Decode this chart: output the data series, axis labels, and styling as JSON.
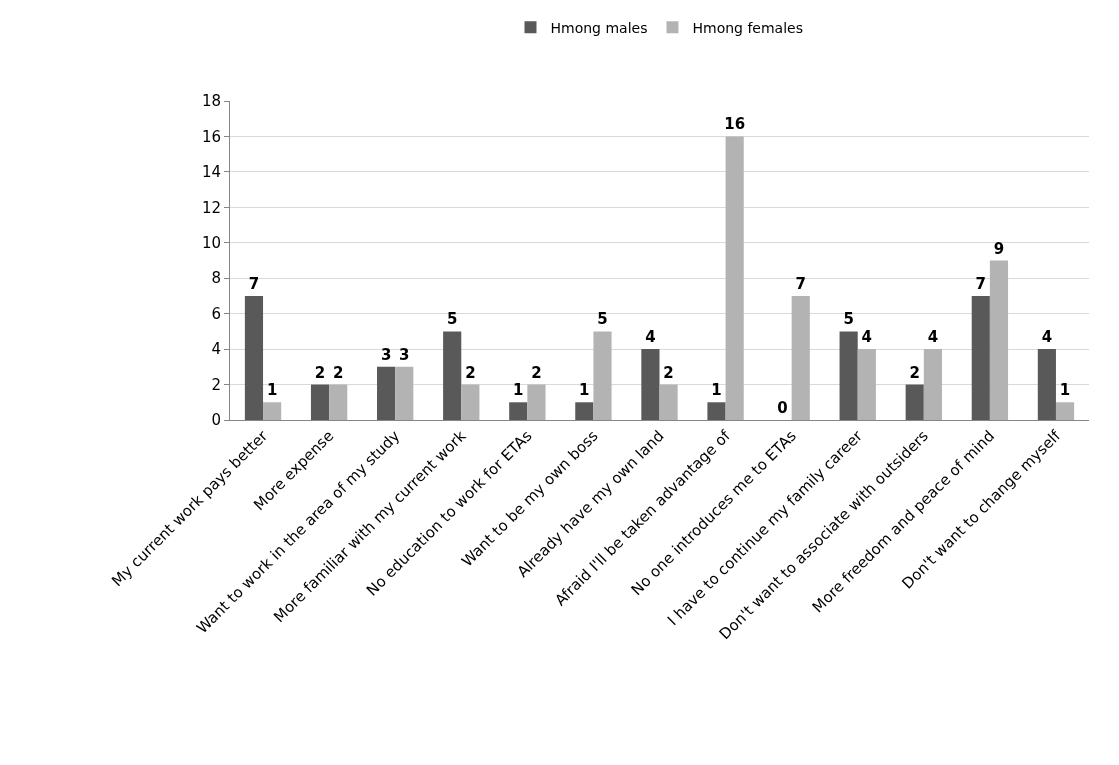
{
  "chart_data": {
    "type": "bar",
    "categories": [
      "My current work pays better",
      "More expense",
      "Want to work in the area of my study",
      "More familiar with my current work",
      "No education to work for ETAs",
      "Want to be my own boss",
      "Already have my own land",
      "Afraid I'll be taken advantage of",
      "No one introduces me to ETAs",
      "I have to continue my family career",
      "Don't want to associate with outsiders",
      "More freedom and peace of mind",
      "Don't want to change myself"
    ],
    "series": [
      {
        "name": "Hmong males",
        "color": "#595959",
        "values": [
          7,
          2,
          3,
          5,
          1,
          1,
          4,
          1,
          0,
          5,
          2,
          7,
          4
        ]
      },
      {
        "name": "Hmong females",
        "color": "#b3b3b3",
        "values": [
          1,
          2,
          3,
          2,
          2,
          5,
          2,
          16,
          7,
          4,
          4,
          9,
          1
        ]
      }
    ],
    "ylim": [
      0,
      18
    ],
    "yticks": [
      0,
      2,
      4,
      6,
      8,
      10,
      12,
      14,
      16,
      18
    ],
    "grid": "y",
    "legend": "top",
    "data_labels": true
  }
}
